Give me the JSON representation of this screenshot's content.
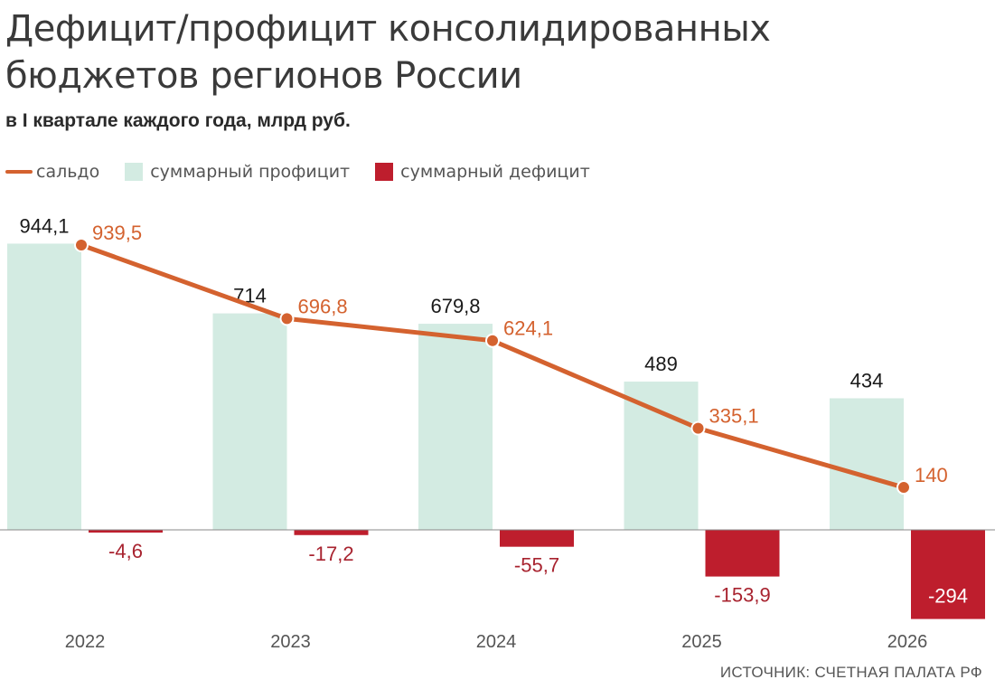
{
  "title": "Дефицит/профицит консолидированных бюджетов регионов России",
  "subtitle": "в I квартале каждого года, млрд руб.",
  "legend": [
    {
      "label": "сальдо",
      "kind": "line",
      "color": "#d4622f"
    },
    {
      "label": "суммарный профицит",
      "kind": "box",
      "color": "#d3ebe2"
    },
    {
      "label": "суммарный дефицит",
      "kind": "box",
      "color": "#be1e2d"
    }
  ],
  "source": "ИСТОЧНИК: СЧЕТНАЯ ПАЛАТА РФ",
  "chart_data": {
    "type": "bar",
    "categories": [
      "2022",
      "2023",
      "2024",
      "2025",
      "2026"
    ],
    "series": [
      {
        "name": "суммарный профицит",
        "type": "bar",
        "color": "#d3ebe2",
        "values": [
          944.1,
          714,
          679.8,
          489,
          434
        ],
        "labels": [
          "944,1",
          "714",
          "679,8",
          "489",
          "434"
        ]
      },
      {
        "name": "суммарный дефицит",
        "type": "bar",
        "color": "#be1e2d",
        "values": [
          -4.6,
          -17.2,
          -55.7,
          -153.9,
          -294
        ],
        "labels": [
          "-4,6",
          "-17,2",
          "-55,7",
          "-153,9",
          "-294"
        ]
      },
      {
        "name": "сальдо",
        "type": "line",
        "color": "#d4622f",
        "values": [
          939.5,
          696.8,
          624.1,
          335.1,
          140
        ],
        "labels": [
          "939,5",
          "696,8",
          "624,1",
          "335,1",
          "140"
        ]
      }
    ],
    "colors": {
      "profit_label": "#1a1a1a",
      "deficit_label": "#a8232f",
      "axis": "#888888",
      "tick": "#555555"
    },
    "ylim": [
      -300,
      950
    ],
    "grid": false,
    "legend_position": "top-left"
  }
}
